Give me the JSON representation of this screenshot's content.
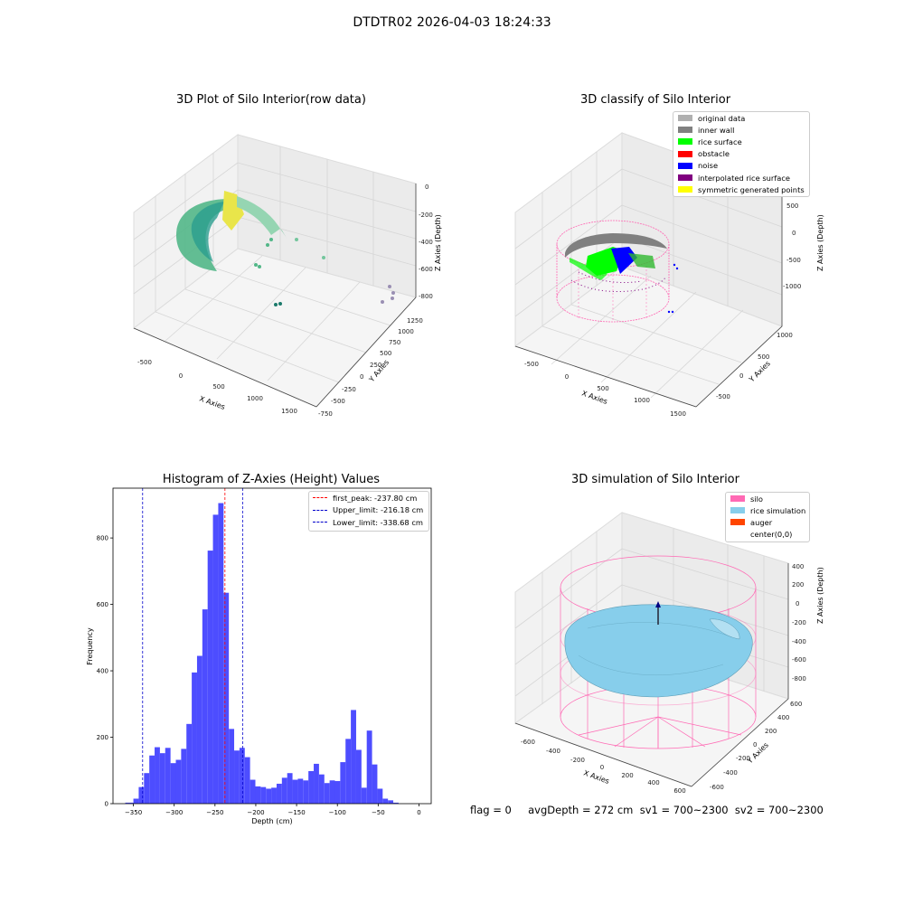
{
  "suptitle": "DTDTR02 2026-04-03 18:24:33",
  "footer": "flag = 0     avgDepth = 272 cm  sv1 = 700~2300  sv2 = 700~2300",
  "colors": {
    "hist_bar": "#4d4dff",
    "first_peak_line": "#ff0000",
    "limit_line": "#0000cc",
    "silo": "#ff69b4",
    "rice_simulation": "#87ceeb",
    "auger": "#ff4500",
    "rice_surface": "#00ff00",
    "noise": "#0000ff",
    "inner_wall": "#808080",
    "original_data": "#b0b0b0",
    "obstacle": "#ff0000",
    "interpolated": "#800080",
    "symmetric": "#ffff00"
  },
  "panel1": {
    "title": "3D Plot of Silo Interior(row data)",
    "xlabel": "X Axies",
    "ylabel": "Y Axies",
    "zlabel": "Z Axies (Depth)",
    "xticks": [
      "-500",
      "0",
      "500",
      "1000",
      "1500"
    ],
    "yticks": [
      "1250",
      "1000",
      "750",
      "500",
      "250",
      "0",
      "-250",
      "-500",
      "-750"
    ],
    "zticks": [
      "0",
      "-200",
      "-400",
      "-600",
      "-800"
    ]
  },
  "panel2": {
    "title": "3D classify of Silo Interior",
    "xlabel": "X Axies",
    "ylabel": "Y Axies",
    "zlabel": "Z Axies (Depth)",
    "xticks": [
      "-500",
      "0",
      "500",
      "1000",
      "1500"
    ],
    "yticks": [
      "1000",
      "500",
      "0",
      "-500"
    ],
    "zticks": [
      "500",
      "0",
      "-500",
      "-1000"
    ],
    "legend": [
      {
        "label": "original data",
        "color": "#b0b0b0"
      },
      {
        "label": "inner wall",
        "color": "#808080"
      },
      {
        "label": "rice surface",
        "color": "#00ff00"
      },
      {
        "label": "obstacle",
        "color": "#ff0000"
      },
      {
        "label": "noise",
        "color": "#0000ff"
      },
      {
        "label": "interpolated rice surface",
        "color": "#800080"
      },
      {
        "label": "symmetric generated points",
        "color": "#ffff00"
      }
    ]
  },
  "panel4": {
    "title": "3D simulation of Silo Interior",
    "xlabel": "X Axies",
    "ylabel": "Y Axies",
    "zlabel": "Z Axies (Depth)",
    "xticks": [
      "-600",
      "-400",
      "-200",
      "0",
      "200",
      "400",
      "600"
    ],
    "yticks": [
      "600",
      "400",
      "200",
      "0",
      "-200",
      "-400",
      "-600"
    ],
    "zticks": [
      "400",
      "200",
      "0",
      "-200",
      "-400",
      "-600",
      "-800"
    ],
    "legend": [
      {
        "label": "silo",
        "color": "#ff69b4"
      },
      {
        "label": "rice simulation",
        "color": "#87ceeb"
      },
      {
        "label": "auger",
        "color": "#ff4500"
      },
      {
        "label": "center(0,0)",
        "color": ""
      }
    ]
  },
  "chart_data": [
    {
      "type": "scatter",
      "title": "3D Plot of Silo Interior(row data)",
      "xlabel": "X Axies",
      "ylabel": "Y Axies",
      "zlabel": "Z Axies (Depth)",
      "xlim": [
        -600,
        1700
      ],
      "ylim": [
        -750,
        1300
      ],
      "zlim": [
        -900,
        0
      ]
    },
    {
      "type": "scatter",
      "title": "3D classify of Silo Interior",
      "xlabel": "X Axies",
      "ylabel": "Y Axies",
      "zlabel": "Z Axies (Depth)",
      "xlim": [
        -600,
        1700
      ],
      "ylim": [
        -700,
        1200
      ],
      "zlim": [
        -1200,
        600
      ]
    },
    {
      "type": "bar",
      "title": "Histogram of Z-Axies (Height) Values",
      "xlabel": "Depth (cm)",
      "ylabel": "Frequency",
      "xlim": [
        -375,
        15
      ],
      "ylim": [
        0,
        950
      ],
      "xticks": [
        -350,
        -300,
        -250,
        -200,
        -150,
        -100,
        -50,
        0
      ],
      "yticks": [
        0,
        200,
        400,
        600,
        800
      ],
      "bins": [
        {
          "x0": -360,
          "x1": -350,
          "y": 3
        },
        {
          "x0": -350,
          "x1": -343.5,
          "y": 15
        },
        {
          "x0": -343.5,
          "x1": -337,
          "y": 50
        },
        {
          "x0": -337,
          "x1": -330.5,
          "y": 92
        },
        {
          "x0": -330.5,
          "x1": -324,
          "y": 145
        },
        {
          "x0": -324,
          "x1": -317.5,
          "y": 170
        },
        {
          "x0": -317.5,
          "x1": -311,
          "y": 152
        },
        {
          "x0": -311,
          "x1": -304.5,
          "y": 168
        },
        {
          "x0": -304.5,
          "x1": -298,
          "y": 122
        },
        {
          "x0": -298,
          "x1": -291.5,
          "y": 132
        },
        {
          "x0": -291.5,
          "x1": -285,
          "y": 165
        },
        {
          "x0": -285,
          "x1": -278.5,
          "y": 240
        },
        {
          "x0": -278.5,
          "x1": -272,
          "y": 395
        },
        {
          "x0": -272,
          "x1": -265.5,
          "y": 445
        },
        {
          "x0": -265.5,
          "x1": -259,
          "y": 585
        },
        {
          "x0": -259,
          "x1": -252.5,
          "y": 762
        },
        {
          "x0": -252.5,
          "x1": -246,
          "y": 870
        },
        {
          "x0": -246,
          "x1": -239.5,
          "y": 905
        },
        {
          "x0": -239.5,
          "x1": -233,
          "y": 635
        },
        {
          "x0": -233,
          "x1": -226.5,
          "y": 225
        },
        {
          "x0": -226.5,
          "x1": -220,
          "y": 160
        },
        {
          "x0": -220,
          "x1": -213.5,
          "y": 168
        },
        {
          "x0": -213.5,
          "x1": -207,
          "y": 140
        },
        {
          "x0": -207,
          "x1": -200.5,
          "y": 72
        },
        {
          "x0": -200.5,
          "x1": -194,
          "y": 52
        },
        {
          "x0": -194,
          "x1": -187.5,
          "y": 50
        },
        {
          "x0": -187.5,
          "x1": -181,
          "y": 45
        },
        {
          "x0": -181,
          "x1": -174.5,
          "y": 48
        },
        {
          "x0": -174.5,
          "x1": -168,
          "y": 60
        },
        {
          "x0": -168,
          "x1": -161.5,
          "y": 78
        },
        {
          "x0": -161.5,
          "x1": -155,
          "y": 92
        },
        {
          "x0": -155,
          "x1": -148.5,
          "y": 72
        },
        {
          "x0": -148.5,
          "x1": -142,
          "y": 75
        },
        {
          "x0": -142,
          "x1": -135.5,
          "y": 70
        },
        {
          "x0": -135.5,
          "x1": -129,
          "y": 98
        },
        {
          "x0": -129,
          "x1": -122.5,
          "y": 120
        },
        {
          "x0": -122.5,
          "x1": -116,
          "y": 88
        },
        {
          "x0": -116,
          "x1": -109.5,
          "y": 62
        },
        {
          "x0": -109.5,
          "x1": -103,
          "y": 70
        },
        {
          "x0": -103,
          "x1": -96.5,
          "y": 68
        },
        {
          "x0": -96.5,
          "x1": -90,
          "y": 125
        },
        {
          "x0": -90,
          "x1": -83.5,
          "y": 195
        },
        {
          "x0": -83.5,
          "x1": -77,
          "y": 282
        },
        {
          "x0": -77,
          "x1": -70.5,
          "y": 162
        },
        {
          "x0": -70.5,
          "x1": -64,
          "y": 48
        },
        {
          "x0": -64,
          "x1": -57.5,
          "y": 220
        },
        {
          "x0": -57.5,
          "x1": -51,
          "y": 118
        },
        {
          "x0": -51,
          "x1": -44.5,
          "y": 45
        },
        {
          "x0": -44.5,
          "x1": -38,
          "y": 15
        },
        {
          "x0": -38,
          "x1": -31.5,
          "y": 10
        },
        {
          "x0": -31.5,
          "x1": -25,
          "y": 3
        }
      ],
      "vlines": [
        {
          "label": "first_peak: -237.80 cm",
          "x": -237.8,
          "color": "#ff0000"
        },
        {
          "label": "Upper_limit: -216.18 cm",
          "x": -216.18,
          "color": "#0000cc"
        },
        {
          "label": "Lower_limit: -338.68 cm",
          "x": -338.68,
          "color": "#0000cc"
        }
      ]
    },
    {
      "type": "area",
      "title": "3D simulation of Silo Interior",
      "xlabel": "X Axies",
      "ylabel": "Y Axies",
      "zlabel": "Z Axies (Depth)",
      "xlim": [
        -700,
        700
      ],
      "ylim": [
        -700,
        700
      ],
      "zlim": [
        -900,
        500
      ]
    }
  ]
}
